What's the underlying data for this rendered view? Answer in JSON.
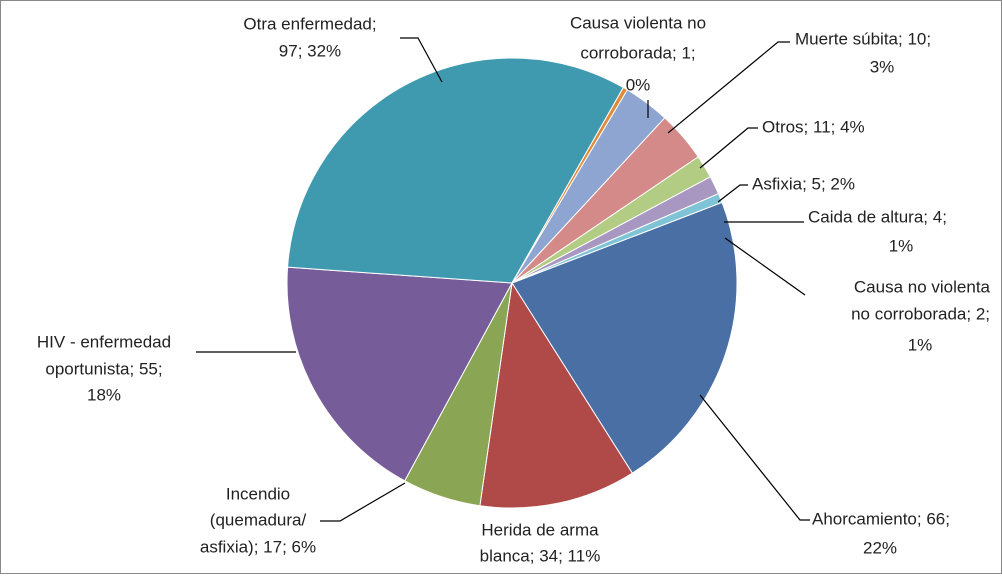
{
  "chart_data": {
    "type": "pie",
    "values": [
      66,
      34,
      17,
      55,
      97,
      1,
      10,
      11,
      5,
      4,
      2
    ],
    "value_labels": [
      [
        "Ahorcamiento; 66;",
        "22%"
      ],
      [
        "Herida de arma",
        "blanca; 34; 11%"
      ],
      [
        "Incendio",
        "(quemadura/",
        "asfixia); 17; 6%"
      ],
      [
        "HIV - enfermedad",
        "oportunista; 55;",
        "18%"
      ],
      [
        "Otra enfermedad;",
        "97; 32%"
      ],
      [
        "Causa violenta no",
        "corroborada; 1;",
        "0%"
      ],
      [
        "Muerte súbita; 10;",
        "3%"
      ],
      [
        "Otros; 11; 4%"
      ],
      [
        "Asfixia; 5; 2%"
      ],
      [
        "Caida de altura; 4;",
        "1%"
      ],
      [
        "Causa no violenta",
        "no corroborada; 2;",
        "1%"
      ]
    ],
    "colors": [
      "#4a6fa5",
      "#b04a48",
      "#8aa553",
      "#765d99",
      "#3f9ab0",
      "#e08a3a",
      "#8ea5d1",
      "#d48a88",
      "#b2cc84",
      "#a897c0",
      "#7fc4d6"
    ]
  }
}
